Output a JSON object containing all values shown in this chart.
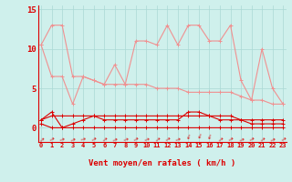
{
  "x": [
    0,
    1,
    2,
    3,
    4,
    5,
    6,
    7,
    8,
    9,
    10,
    11,
    12,
    13,
    14,
    15,
    16,
    17,
    18,
    19,
    20,
    21,
    22,
    23
  ],
  "line1": [
    10.5,
    13.0,
    13.0,
    6.5,
    6.5,
    6.0,
    5.5,
    8.0,
    5.5,
    11.0,
    11.0,
    10.5,
    13.0,
    10.5,
    13.0,
    13.0,
    11.0,
    11.0,
    13.0,
    6.0,
    3.5,
    10.0,
    5.0,
    3.0
  ],
  "line2": [
    10.5,
    6.5,
    6.5,
    3.0,
    6.5,
    6.0,
    5.5,
    5.5,
    5.5,
    5.5,
    5.5,
    5.0,
    5.0,
    5.0,
    4.5,
    4.5,
    4.5,
    4.5,
    4.5,
    4.0,
    3.5,
    3.5,
    3.0,
    3.0
  ],
  "line3": [
    1.0,
    2.0,
    0.0,
    0.5,
    1.0,
    1.5,
    1.0,
    1.0,
    1.0,
    1.0,
    1.0,
    1.0,
    1.0,
    1.0,
    2.0,
    2.0,
    1.5,
    1.0,
    1.0,
    1.0,
    0.5,
    0.5,
    0.5,
    0.5
  ],
  "line4": [
    1.0,
    1.5,
    1.5,
    1.5,
    1.5,
    1.5,
    1.5,
    1.5,
    1.5,
    1.5,
    1.5,
    1.5,
    1.5,
    1.5,
    1.5,
    1.5,
    1.5,
    1.5,
    1.5,
    1.0,
    1.0,
    1.0,
    1.0,
    1.0
  ],
  "line5": [
    0.5,
    0.0,
    0.0,
    0.0,
    0.0,
    0.0,
    0.0,
    0.0,
    0.0,
    0.0,
    0.0,
    0.0,
    0.0,
    0.0,
    0.0,
    0.0,
    0.0,
    0.0,
    0.0,
    0.0,
    0.0,
    0.0,
    0.0,
    0.0
  ],
  "arrow_angles": [
    220,
    210,
    200,
    205,
    195,
    210,
    215,
    205,
    200,
    210,
    200,
    215,
    210,
    200,
    70,
    65,
    70,
    215,
    210,
    205,
    210,
    215,
    205,
    210
  ],
  "color_light": "#f09090",
  "color_dark": "#dd0000",
  "background": "#cff0ec",
  "grid_color": "#aad8d4",
  "xlabel": "Vent moyen/en rafales ( km/h )",
  "yticks": [
    0,
    5,
    10,
    15
  ],
  "xlim": [
    -0.3,
    23.3
  ],
  "ylim": [
    -1.8,
    15.5
  ]
}
